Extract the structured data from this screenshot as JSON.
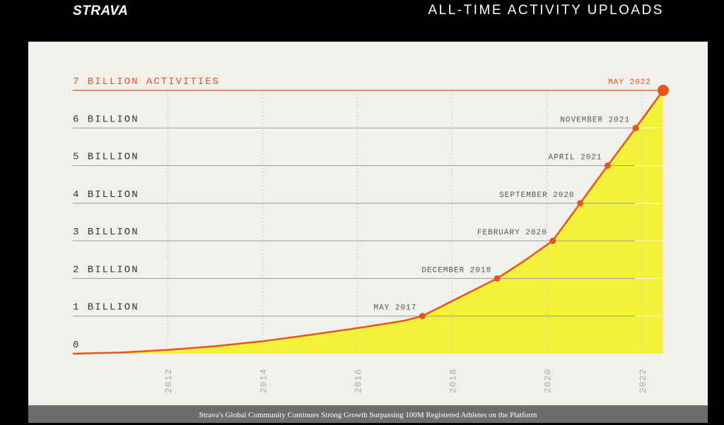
{
  "header": {
    "logo": "STRAVA",
    "title": "ALL-TIME ACTIVITY UPLOADS"
  },
  "footer": {
    "caption": "Strava's Global Community Continues Strong Growth Surpassing 100M Registered Athletes on the Platform"
  },
  "colors": {
    "line": "#e8541a",
    "fill": "#f3f23a",
    "panel": "#f2f0eb",
    "background": "#000000"
  },
  "chart_data": {
    "type": "area",
    "title": "ALL-TIME ACTIVITY UPLOADS",
    "ylim": [
      0,
      7
    ],
    "xlim": [
      2010.0,
      2022.45
    ],
    "y_tick_values": [
      0,
      1,
      2,
      3,
      4,
      5,
      6,
      7
    ],
    "y_tick_labels": [
      "0",
      "1 BILLION",
      "2 BILLION",
      "3 BILLION",
      "4 BILLION",
      "5 BILLION",
      "6 BILLION",
      "7 BILLION ACTIVITIES"
    ],
    "x_tick_values": [
      2012,
      2014,
      2016,
      2018,
      2020,
      2022
    ],
    "x_tick_labels": [
      "2012",
      "2014",
      "2016",
      "2018",
      "2020",
      "2022"
    ],
    "grid": true,
    "series": [
      {
        "x": [
          2010.0,
          2011.0,
          2012.0,
          2013.0,
          2014.0,
          2015.0,
          2016.0,
          2017.0,
          2017.37,
          2018.0,
          2018.95,
          2019.5,
          2020.12,
          2020.7,
          2021.28,
          2021.87,
          2022.45
        ],
        "y": [
          0,
          0.03,
          0.1,
          0.2,
          0.33,
          0.5,
          0.68,
          0.88,
          1,
          1.4,
          2,
          2.45,
          3,
          4,
          5,
          6,
          7
        ]
      }
    ],
    "milestones": [
      {
        "x": 2017.37,
        "y": 1,
        "label": "MAY 2017"
      },
      {
        "x": 2018.95,
        "y": 2,
        "label": "DECEMBER 2018"
      },
      {
        "x": 2020.12,
        "y": 3,
        "label": "FEBRUARY 2020"
      },
      {
        "x": 2020.7,
        "y": 4,
        "label": "SEPTEMBER 2020"
      },
      {
        "x": 2021.28,
        "y": 5,
        "label": "APRIL 2021"
      },
      {
        "x": 2021.87,
        "y": 6,
        "label": "NOVEMBER 2021"
      },
      {
        "x": 2022.45,
        "y": 7,
        "label": "MAY 2022"
      }
    ]
  }
}
